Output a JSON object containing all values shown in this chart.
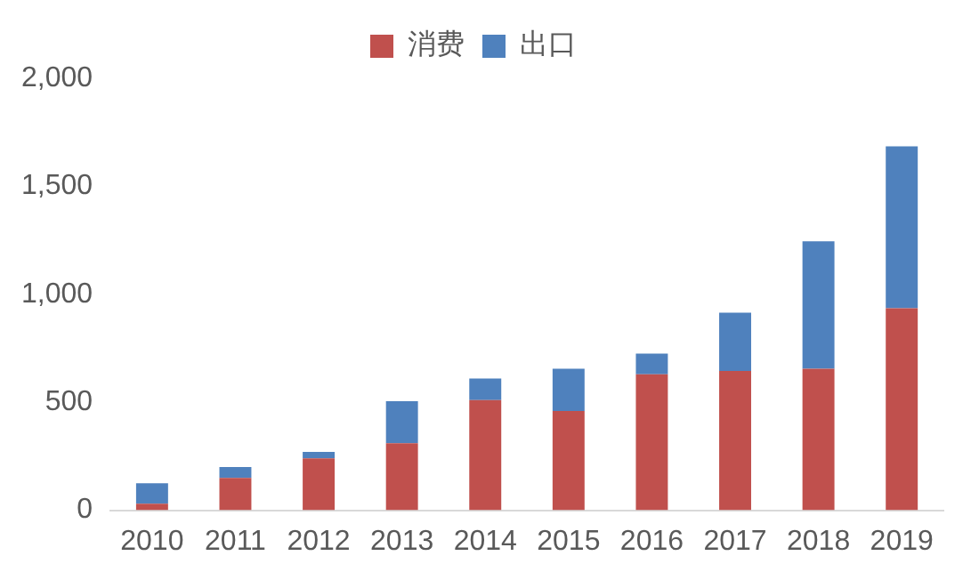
{
  "chart_data": {
    "type": "bar",
    "stacked": true,
    "categories": [
      "2010",
      "2011",
      "2012",
      "2013",
      "2014",
      "2015",
      "2016",
      "2017",
      "2018",
      "2019"
    ],
    "series": [
      {
        "name": "消费",
        "color": "#c0504d",
        "values": [
          30,
          150,
          240,
          310,
          510,
          460,
          630,
          645,
          655,
          935
        ]
      },
      {
        "name": "出口",
        "color": "#4f81bd",
        "values": [
          95,
          50,
          30,
          195,
          100,
          195,
          95,
          270,
          590,
          750
        ]
      }
    ],
    "ylim": [
      0,
      2000
    ],
    "yticks": [
      {
        "value": 0,
        "label": "0"
      },
      {
        "value": 500,
        "label": "500"
      },
      {
        "value": 1000,
        "label": "1,000"
      },
      {
        "value": 1500,
        "label": "1,500"
      },
      {
        "value": 2000,
        "label": "2,000"
      }
    ],
    "grid": false,
    "legend": "top"
  }
}
